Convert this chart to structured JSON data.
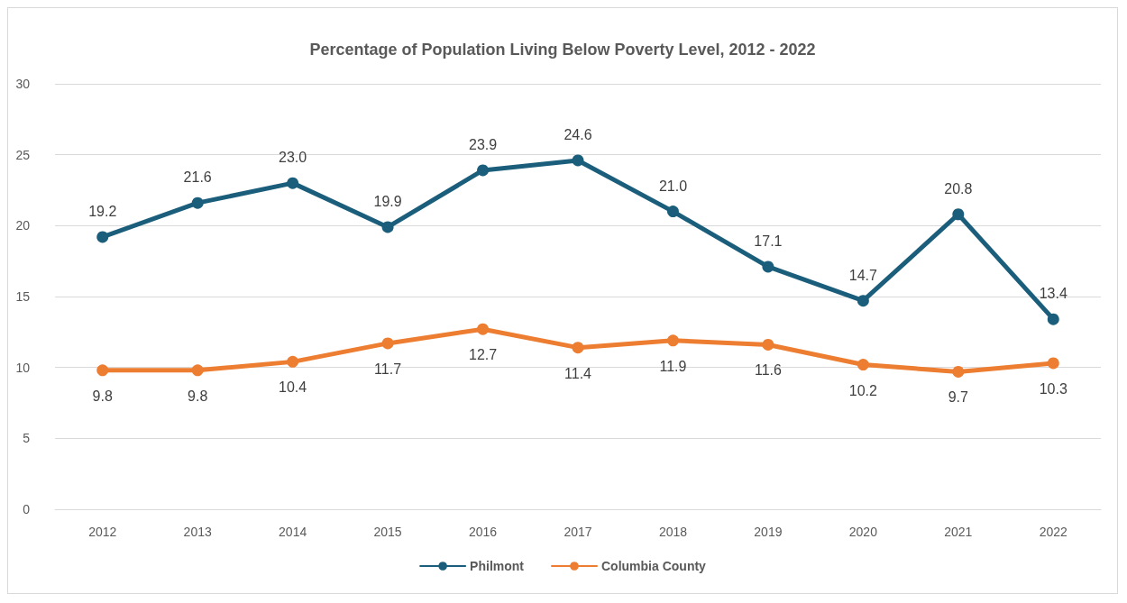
{
  "chart_data": {
    "type": "line",
    "title": "Percentage of Population Living Below Poverty Level, 2012 - 2022",
    "categories": [
      "2012",
      "2013",
      "2014",
      "2015",
      "2016",
      "2017",
      "2018",
      "2019",
      "2020",
      "2021",
      "2022"
    ],
    "series": [
      {
        "name": "Philmont",
        "color": "#1b5e7b",
        "values": [
          19.2,
          21.6,
          23.0,
          19.9,
          23.9,
          24.6,
          21.0,
          17.1,
          14.7,
          20.8,
          13.4
        ],
        "value_labels": [
          "19.2",
          "21.6",
          "23.0",
          "19.9",
          "23.9",
          "24.6",
          "21.0",
          "17.1",
          "14.7",
          "20.8",
          "13.4"
        ]
      },
      {
        "name": "Columbia County",
        "color": "#ed7d31",
        "values": [
          9.8,
          9.8,
          10.4,
          11.7,
          12.7,
          11.4,
          11.9,
          11.6,
          10.2,
          9.7,
          10.3
        ],
        "value_labels": [
          "9.8",
          "9.8",
          "10.4",
          "11.7",
          "12.7",
          "11.4",
          "11.9",
          "11.6",
          "10.2",
          "9.7",
          "10.3"
        ]
      }
    ],
    "ylim": [
      0,
      30
    ],
    "yticks": [
      0,
      5,
      10,
      15,
      20,
      25,
      30
    ],
    "grid": "y",
    "legend": "bottom",
    "marker": "circle",
    "line_style": "solid"
  }
}
